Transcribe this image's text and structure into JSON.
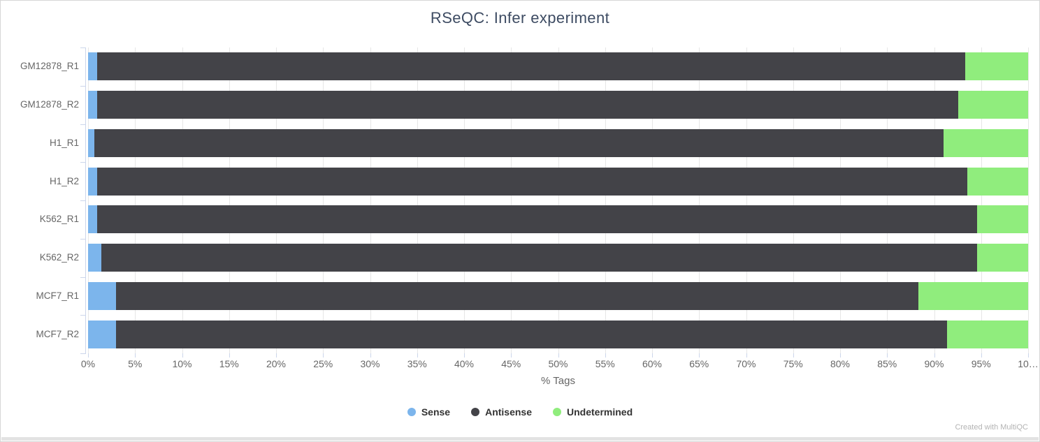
{
  "title": "RSeQC: Infer experiment",
  "chart_data": {
    "type": "bar",
    "orientation": "horizontal",
    "stacked": true,
    "categories": [
      "GM12878_R1",
      "GM12878_R2",
      "H1_R1",
      "H1_R2",
      "K562_R1",
      "K562_R2",
      "MCF7_R1",
      "MCF7_R2"
    ],
    "series": [
      {
        "name": "Sense",
        "color": "#7cb5ec",
        "values": [
          1.0,
          1.0,
          0.7,
          1.0,
          1.0,
          1.4,
          3.0,
          3.0
        ]
      },
      {
        "name": "Antisense",
        "color": "#434348",
        "values": [
          92.3,
          91.6,
          90.3,
          92.5,
          93.6,
          93.2,
          85.3,
          88.4
        ]
      },
      {
        "name": "Undetermined",
        "color": "#90ed7d",
        "values": [
          6.7,
          7.4,
          9.0,
          6.5,
          5.4,
          5.4,
          11.7,
          8.6
        ]
      }
    ],
    "xlabel": "% Tags",
    "x_ticks": [
      "0%",
      "5%",
      "10%",
      "15%",
      "20%",
      "25%",
      "30%",
      "35%",
      "40%",
      "45%",
      "50%",
      "55%",
      "60%",
      "65%",
      "70%",
      "75%",
      "80%",
      "85%",
      "90%",
      "95%",
      "10…"
    ],
    "xlim": [
      0,
      100
    ],
    "grid": true,
    "legend_position": "bottom"
  },
  "footer": {
    "credit": "Created with MultiQC"
  },
  "colors": {
    "gridline": "#e6e6e6",
    "axis_line": "#ccd6eb",
    "tick_label": "#666666",
    "title": "#3e4c63",
    "legend_text": "#333333",
    "credit": "#b3b3b3",
    "scrollbar_track": "#e3e3e3"
  }
}
